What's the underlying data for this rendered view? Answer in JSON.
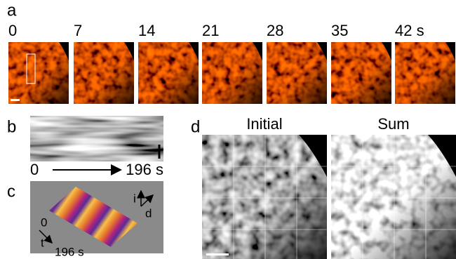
{
  "panel_a": {
    "label": "a",
    "times": [
      "0",
      "7",
      "14",
      "21",
      "28",
      "35",
      "42 s"
    ]
  },
  "panel_b": {
    "label": "b",
    "start": "0",
    "end": "196 s"
  },
  "panel_c": {
    "label": "c",
    "axis_i": "i",
    "axis_d": "d",
    "start": "0",
    "axis_t": "t",
    "end": "196 s"
  },
  "panel_d": {
    "label": "d",
    "titles": [
      "Initial",
      "Sum"
    ]
  }
}
